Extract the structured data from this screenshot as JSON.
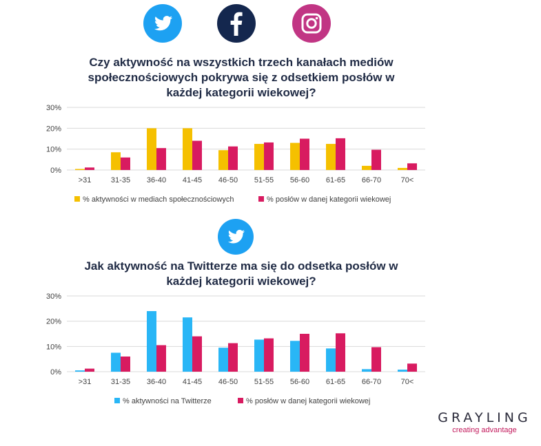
{
  "icons": {
    "twitter": "twitter-icon",
    "facebook": "facebook-icon",
    "instagram": "instagram-icon"
  },
  "colors": {
    "twitter_blue": "#1da1f2",
    "facebook_navy": "#14274e",
    "instagram_magenta": "#c13584",
    "social_activity": "#f5c000",
    "twitter_activity": "#29b6f6",
    "mp_share": "#d81b60",
    "grid": "#d9d9d9"
  },
  "chart_data": [
    {
      "type": "bar",
      "title_lines": [
        "Czy aktywność na wszystkich trzech kanałach mediów",
        "społecznościowych pokrywa się z odsetkiem posłów w",
        "każdej kategorii wiekowej?"
      ],
      "categories": [
        ">31",
        "31-35",
        "36-40",
        "41-45",
        "46-50",
        "51-55",
        "56-60",
        "61-65",
        "66-70",
        "70<"
      ],
      "y_ticks": [
        "0%",
        "10%",
        "20%",
        "30%"
      ],
      "ylim": [
        0,
        30
      ],
      "grid": true,
      "legend_position": "bottom",
      "series": [
        {
          "name": "% aktywności w mediach społecznościowych",
          "color": "#f5c000",
          "values": [
            0.5,
            8.5,
            20,
            20,
            9.5,
            12.5,
            13,
            12.5,
            2,
            1
          ]
        },
        {
          "name": "% posłów w danej kategorii wiekowej",
          "color": "#d81b60",
          "values": [
            1.2,
            6,
            10.5,
            14,
            11.3,
            13.2,
            15,
            15.2,
            9.7,
            3.2
          ]
        }
      ]
    },
    {
      "type": "bar",
      "title_lines": [
        "Jak aktywność na Twitterze ma się do odsetka posłów w",
        "każdej kategorii wiekowej?"
      ],
      "categories": [
        ">31",
        "31-35",
        "36-40",
        "41-45",
        "46-50",
        "51-55",
        "56-60",
        "61-65",
        "66-70",
        "70<"
      ],
      "y_ticks": [
        "0%",
        "10%",
        "20%",
        "30%"
      ],
      "ylim": [
        0,
        30
      ],
      "grid": true,
      "legend_position": "bottom",
      "series": [
        {
          "name": "% aktywności na Twitterze",
          "color": "#29b6f6",
          "values": [
            0.5,
            7.5,
            24,
            21.5,
            9.5,
            12.7,
            12.2,
            9.2,
            1,
            0.8
          ]
        },
        {
          "name": "% posłów w danej kategorii wiekowej",
          "color": "#d81b60",
          "values": [
            1.2,
            6,
            10.5,
            14,
            11.3,
            13.2,
            15,
            15.2,
            9.7,
            3.2
          ]
        }
      ]
    }
  ],
  "brand": {
    "name": "GRAYLING",
    "tagline": "creating advantage"
  }
}
